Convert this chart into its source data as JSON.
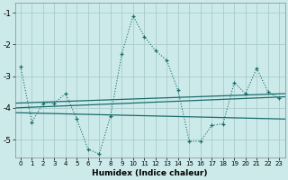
{
  "xlabel": "Humidex (Indice chaleur)",
  "bg_color": "#cceaea",
  "grid_color": "#aacccc",
  "line_color": "#1a6b6b",
  "xlim": [
    -0.5,
    23.5
  ],
  "ylim": [
    -5.55,
    -0.7
  ],
  "yticks": [
    -5,
    -4,
    -3,
    -2,
    -1
  ],
  "xticks": [
    0,
    1,
    2,
    3,
    4,
    5,
    6,
    7,
    8,
    9,
    10,
    11,
    12,
    13,
    14,
    15,
    16,
    17,
    18,
    19,
    20,
    21,
    22,
    23
  ],
  "main_series": [
    -2.7,
    -4.45,
    -3.85,
    -3.85,
    -3.55,
    -4.35,
    -5.3,
    -5.45,
    -4.25,
    -2.3,
    -1.1,
    -1.75,
    -2.2,
    -2.5,
    -3.45,
    -5.05,
    -5.05,
    -4.55,
    -4.5,
    -3.2,
    -3.55,
    -2.75,
    -3.5,
    -3.7
  ],
  "reg_line1": [
    -3.85,
    -3.55
  ],
  "reg_line2": [
    -4.0,
    -3.65
  ],
  "reg_line3": [
    -4.15,
    -4.35
  ]
}
